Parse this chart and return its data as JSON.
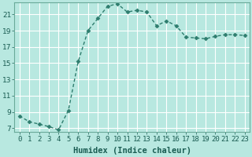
{
  "x": [
    0,
    1,
    2,
    3,
    4,
    5,
    6,
    7,
    8,
    9,
    10,
    11,
    12,
    13,
    14,
    15,
    16,
    17,
    18,
    19,
    20,
    21,
    22,
    23
  ],
  "y": [
    8.5,
    7.8,
    7.5,
    7.2,
    6.8,
    9.2,
    15.2,
    19.0,
    20.5,
    22.0,
    22.3,
    21.3,
    21.5,
    21.3,
    19.6,
    20.2,
    19.6,
    18.2,
    18.1,
    18.0,
    18.3,
    18.5,
    18.5,
    18.4
  ],
  "line_color": "#2e7d6e",
  "marker": "D",
  "marker_size": 2.5,
  "background_color": "#b8e8e0",
  "grid_color": "#ffffff",
  "xlabel": "Humidex (Indice chaleur)",
  "xlim": [
    -0.5,
    23.5
  ],
  "ylim": [
    6.5,
    22.5
  ],
  "yticks": [
    7,
    9,
    11,
    13,
    15,
    17,
    19,
    21
  ],
  "xtick_labels": [
    "0",
    "1",
    "2",
    "3",
    "4",
    "5",
    "6",
    "7",
    "8",
    "9",
    "10",
    "11",
    "12",
    "13",
    "14",
    "15",
    "16",
    "17",
    "18",
    "19",
    "20",
    "21",
    "22",
    "23"
  ],
  "font_color": "#1a5c52",
  "axis_color": "#6aaa99",
  "xlabel_fontsize": 7.5,
  "tick_fontsize": 6.5,
  "linewidth": 1.0
}
